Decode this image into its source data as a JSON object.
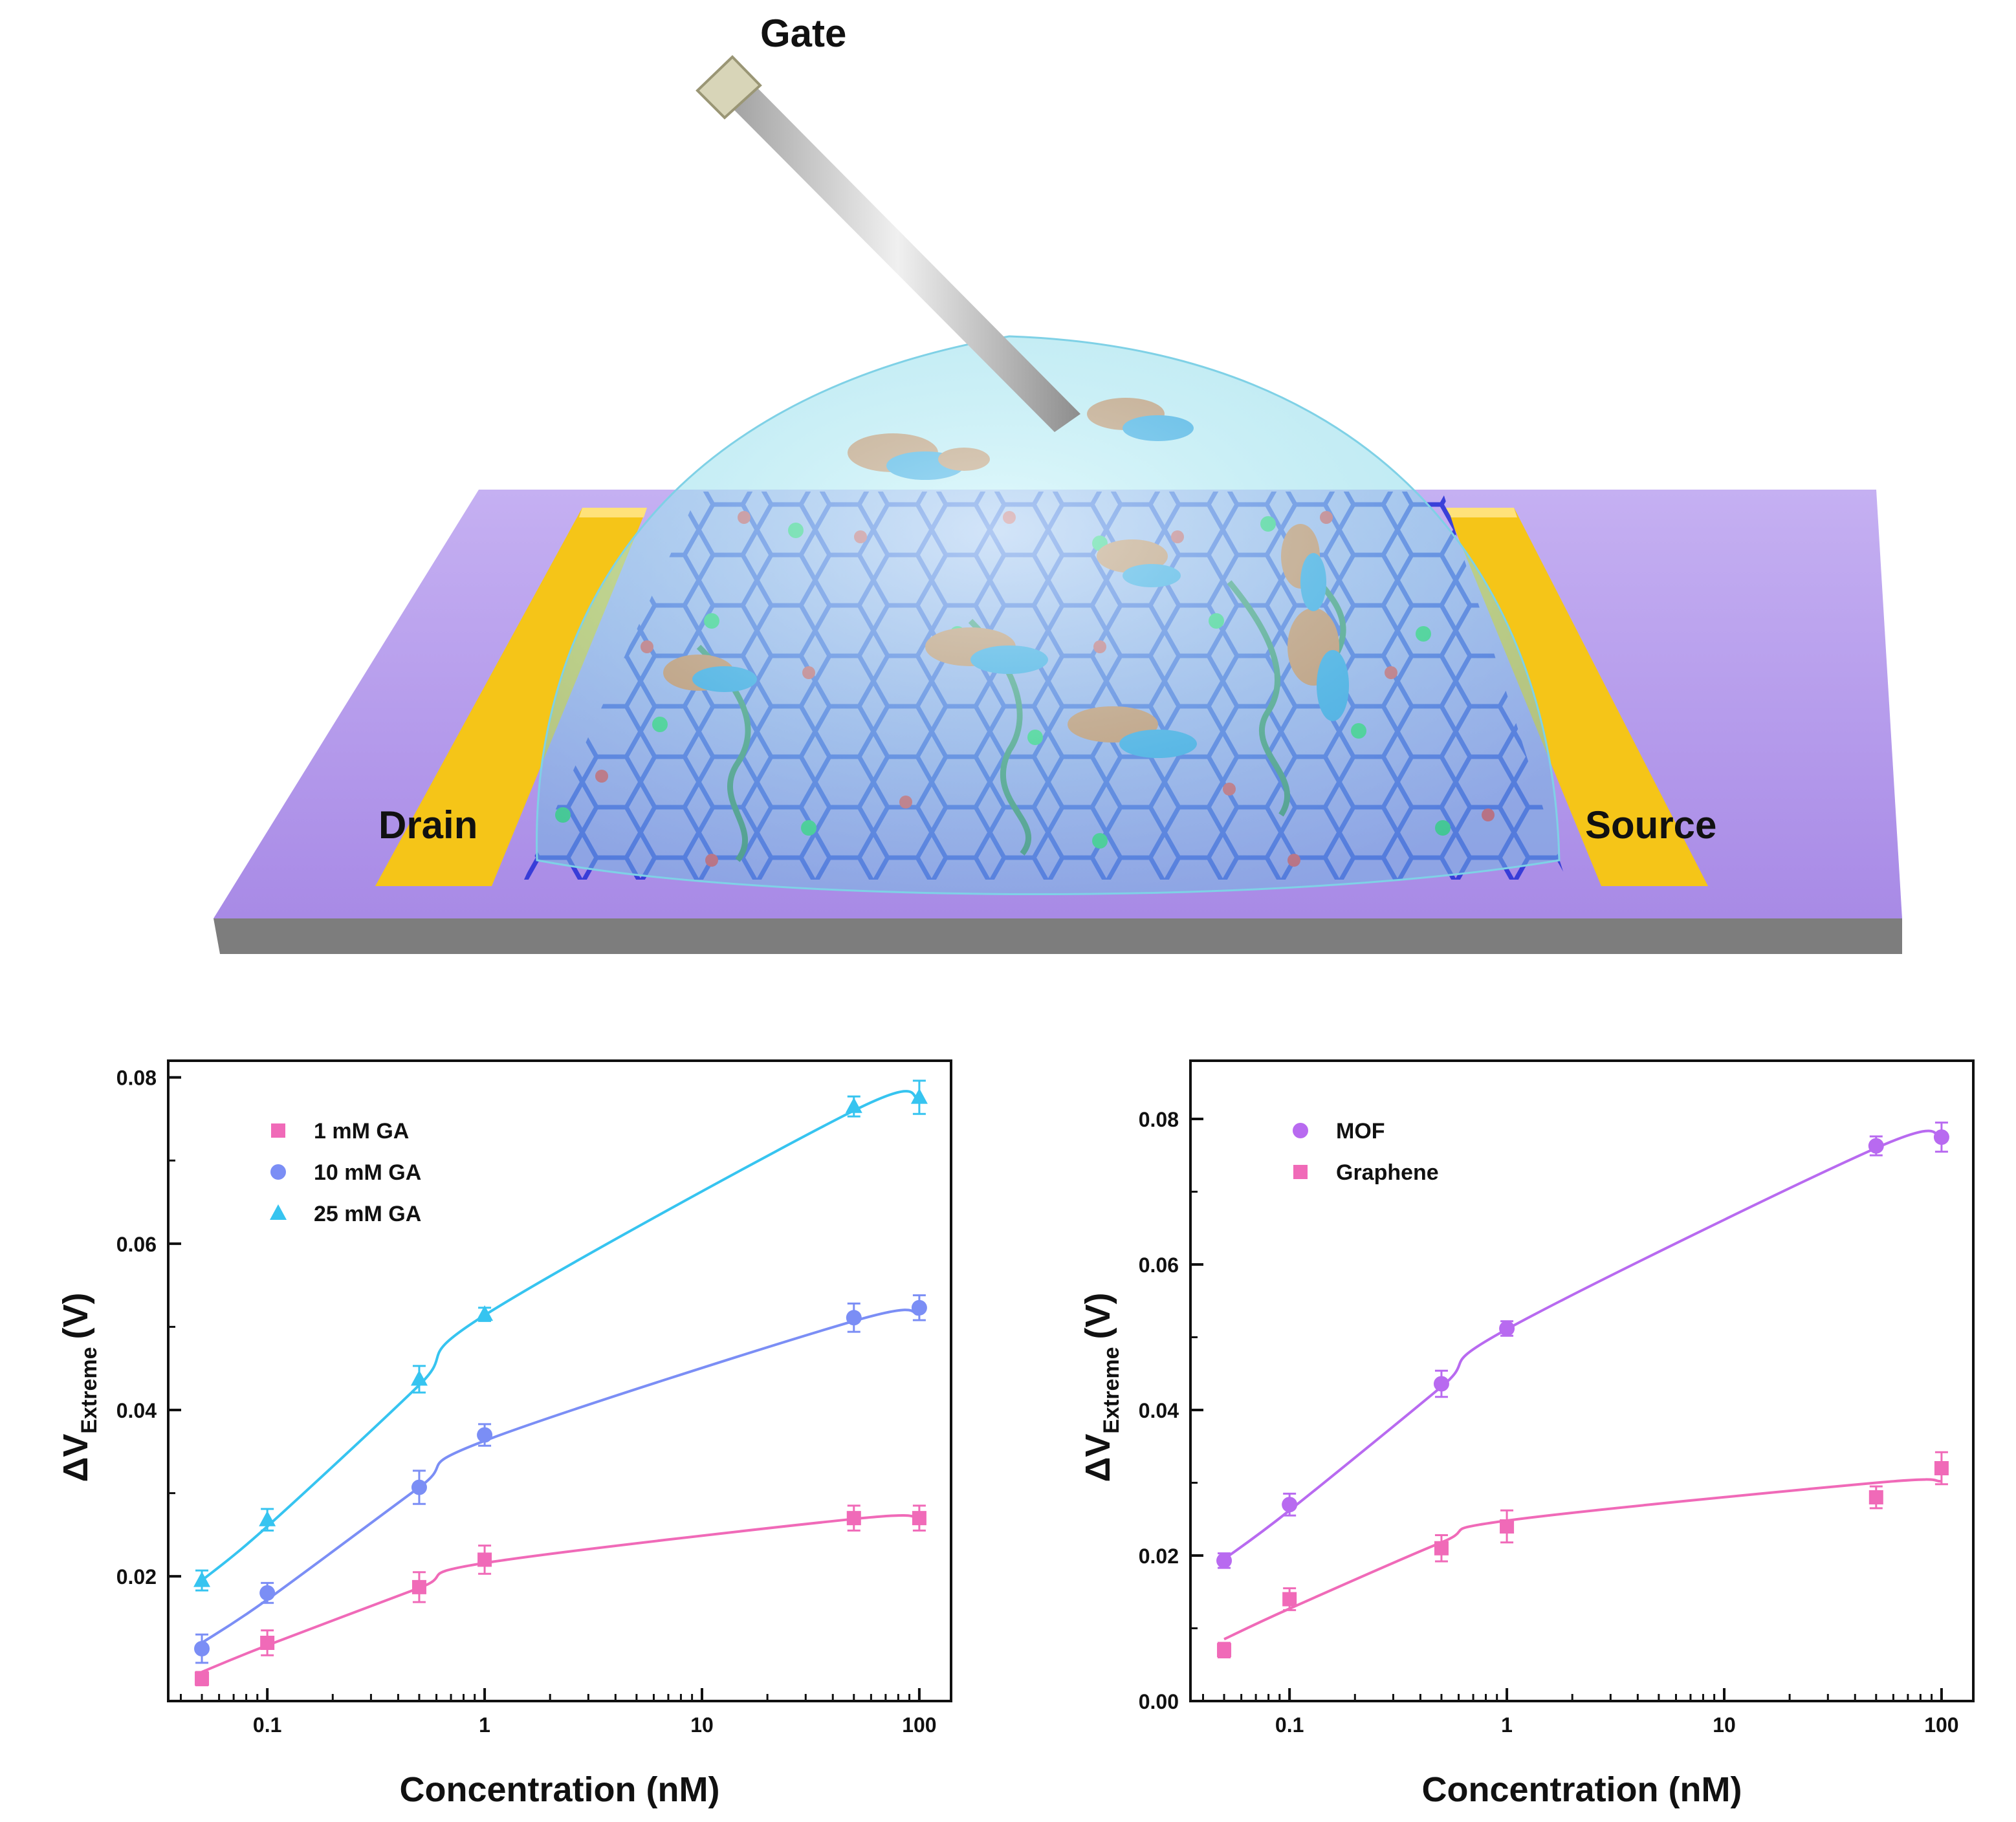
{
  "device": {
    "labels": {
      "gate": "Gate",
      "drain": "Drain",
      "source": "Source"
    },
    "colors": {
      "substrate": "#b59be9",
      "electrode": "#f5c518",
      "droplet": "#9fe3f0",
      "framework": "#2b34d6",
      "protein_orange": "#ff6a1a",
      "protein_blue": "#1d8fe0",
      "linker": "#2e7d3e"
    }
  },
  "chart_data": [
    {
      "type": "scatter",
      "xscale": "log",
      "xlabel": "Concentration (nM)",
      "ylabel_main": "ΔV",
      "ylabel_sub": "Extreme",
      "ylabel_unit": "(V)",
      "xlim": [
        0.035,
        140
      ],
      "ylim": [
        0.005,
        0.082
      ],
      "xticks": [
        {
          "v": 0.1,
          "label": "0.1"
        },
        {
          "v": 1,
          "label": "1"
        },
        {
          "v": 10,
          "label": "10"
        },
        {
          "v": 100,
          "label": "100"
        }
      ],
      "yticks": [
        {
          "v": 0.02,
          "label": "0.02"
        },
        {
          "v": 0.04,
          "label": "0.04"
        },
        {
          "v": 0.06,
          "label": "0.06"
        },
        {
          "v": 0.08,
          "label": "0.08"
        }
      ],
      "legend_position": "top-left",
      "x": [
        0.05,
        0.1,
        0.5,
        1,
        50,
        100
      ],
      "series": [
        {
          "name": "1 mM GA",
          "marker": "square",
          "color": "#f06ab8",
          "values": [
            0.0077,
            0.012,
            0.0187,
            0.022,
            0.027,
            0.027
          ],
          "errors": [
            0.0008,
            0.0015,
            0.0018,
            0.0017,
            0.0015,
            0.0015
          ],
          "fit": [
            0.0085,
            0.0117,
            0.0186,
            0.0216,
            0.0269,
            0.027
          ]
        },
        {
          "name": "10 mM GA",
          "marker": "circle",
          "color": "#7b8ef5",
          "values": [
            0.0113,
            0.018,
            0.0307,
            0.037,
            0.0511,
            0.0523
          ],
          "errors": [
            0.0017,
            0.0012,
            0.002,
            0.0013,
            0.0017,
            0.0015
          ],
          "fit": [
            0.012,
            0.0172,
            0.0307,
            0.0363,
            0.0507,
            0.0515
          ]
        },
        {
          "name": "25 mM GA",
          "marker": "triangle",
          "color": "#36c4f0",
          "values": [
            0.0195,
            0.0268,
            0.0437,
            0.0515,
            0.0765,
            0.0776
          ],
          "errors": [
            0.0012,
            0.0013,
            0.0016,
            0.0008,
            0.0012,
            0.002
          ],
          "fit": [
            0.0195,
            0.026,
            0.043,
            0.0514,
            0.076,
            0.0775
          ]
        }
      ]
    },
    {
      "type": "scatter",
      "xscale": "log",
      "xlabel": "Concentration (nM)",
      "ylabel_main": "ΔV",
      "ylabel_sub": "Extreme",
      "ylabel_unit": "(V)",
      "xlim": [
        0.035,
        140
      ],
      "ylim": [
        0.0,
        0.088
      ],
      "xticks": [
        {
          "v": 0.1,
          "label": "0.1"
        },
        {
          "v": 1,
          "label": "1"
        },
        {
          "v": 10,
          "label": "10"
        },
        {
          "v": 100,
          "label": "100"
        }
      ],
      "yticks": [
        {
          "v": 0.0,
          "label": "0.00"
        },
        {
          "v": 0.02,
          "label": "0.02"
        },
        {
          "v": 0.04,
          "label": "0.04"
        },
        {
          "v": 0.06,
          "label": "0.06"
        },
        {
          "v": 0.08,
          "label": "0.08"
        }
      ],
      "legend_position": "top-left",
      "x": [
        0.05,
        0.1,
        0.5,
        1,
        50,
        100
      ],
      "series": [
        {
          "name": "MOF",
          "marker": "circle",
          "color": "#b86af0",
          "values": [
            0.0193,
            0.027,
            0.0436,
            0.0512,
            0.0763,
            0.0775
          ],
          "errors": [
            0.001,
            0.0015,
            0.0018,
            0.001,
            0.0013,
            0.002
          ],
          "fit": [
            0.0195,
            0.0262,
            0.0432,
            0.0511,
            0.076,
            0.0775
          ]
        },
        {
          "name": "Graphene",
          "marker": "square",
          "color": "#f06ab8",
          "values": [
            0.007,
            0.014,
            0.021,
            0.024,
            0.028,
            0.032
          ],
          "errors": [
            0.001,
            0.0015,
            0.0018,
            0.0022,
            0.0015,
            0.0022
          ],
          "fit": [
            0.0085,
            0.0127,
            0.0218,
            0.0248,
            0.03,
            0.0302
          ]
        }
      ]
    }
  ]
}
